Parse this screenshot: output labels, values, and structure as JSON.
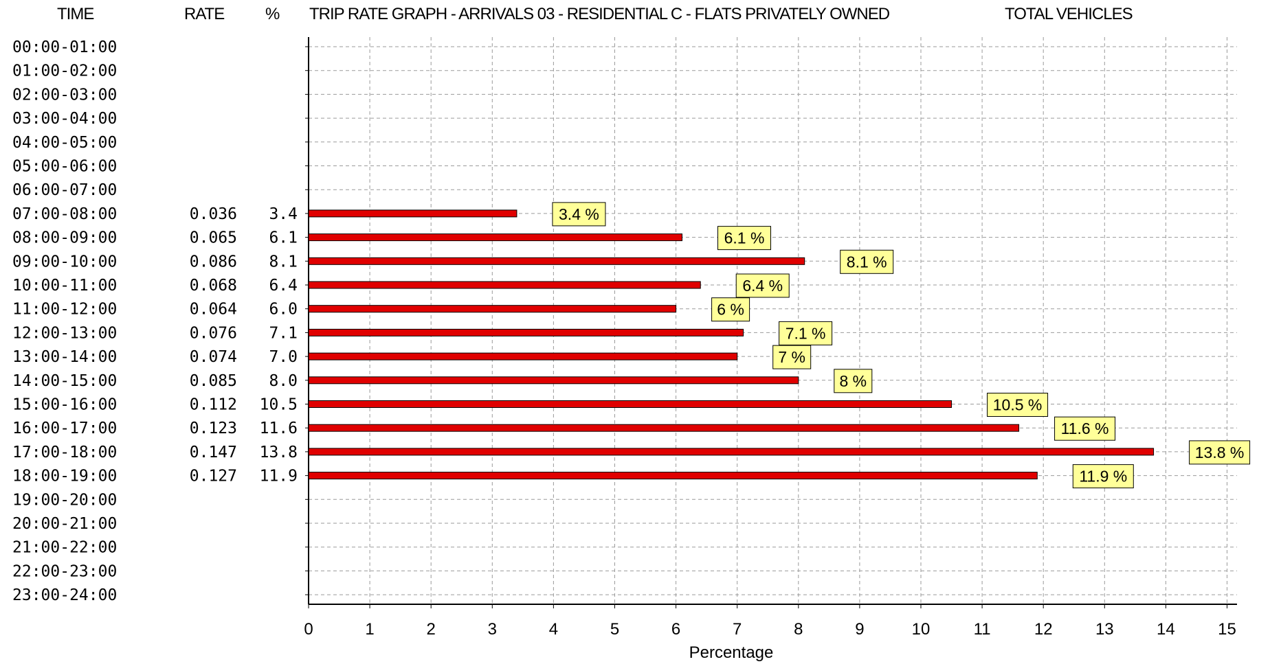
{
  "header": {
    "time_label": "TIME",
    "rate_label": "RATE",
    "pct_label": "%",
    "title": "TRIP RATE GRAPH - ARRIVALS  03 - RESIDENTIAL  C - FLATS PRIVATELY OWNED",
    "subtitle": "TOTAL VEHICLES"
  },
  "colors": {
    "bar": "#e00000",
    "bar_border": "#000000",
    "label_bg": "#ffff99",
    "grid": "#9a9a9a"
  },
  "chart_data": {
    "type": "bar",
    "orientation": "horizontal",
    "title": "TRIP RATE GRAPH - ARRIVALS  03 - RESIDENTIAL  C - FLATS PRIVATELY OWNED",
    "subtitle": "TOTAL VEHICLES",
    "xlabel": "Percentage",
    "ylabel": "TIME",
    "xlim": [
      0,
      15
    ],
    "xticks": [
      0,
      1,
      2,
      3,
      4,
      5,
      6,
      7,
      8,
      9,
      10,
      11,
      12,
      13,
      14,
      15
    ],
    "grid": true,
    "categories": [
      "00:00-01:00",
      "01:00-02:00",
      "02:00-03:00",
      "03:00-04:00",
      "04:00-05:00",
      "05:00-06:00",
      "06:00-07:00",
      "07:00-08:00",
      "08:00-09:00",
      "09:00-10:00",
      "10:00-11:00",
      "11:00-12:00",
      "12:00-13:00",
      "13:00-14:00",
      "14:00-15:00",
      "15:00-16:00",
      "16:00-17:00",
      "17:00-18:00",
      "18:00-19:00",
      "19:00-20:00",
      "20:00-21:00",
      "21:00-22:00",
      "22:00-23:00",
      "23:00-24:00"
    ],
    "rates": [
      "",
      "",
      "",
      "",
      "",
      "",
      "",
      "0.036",
      "0.065",
      "0.086",
      "0.068",
      "0.064",
      "0.076",
      "0.074",
      "0.085",
      "0.112",
      "0.123",
      "0.147",
      "0.127",
      "",
      "",
      "",
      "",
      ""
    ],
    "percent_text": [
      "",
      "",
      "",
      "",
      "",
      "",
      "",
      "3.4",
      "6.1",
      "8.1",
      "6.4",
      "6.0",
      "7.1",
      "7.0",
      "8.0",
      "10.5",
      "11.6",
      "13.8",
      "11.9",
      "",
      "",
      "",
      "",
      ""
    ],
    "values": [
      null,
      null,
      null,
      null,
      null,
      null,
      null,
      3.4,
      6.1,
      8.1,
      6.4,
      6.0,
      7.1,
      7.0,
      8.0,
      10.5,
      11.6,
      13.8,
      11.9,
      null,
      null,
      null,
      null,
      null
    ],
    "data_labels": [
      "",
      "",
      "",
      "",
      "",
      "",
      "",
      "3.4 %",
      "6.1 %",
      "8.1 %",
      "6.4 %",
      "6 %",
      "7.1 %",
      "7 %",
      "8 %",
      "10.5 %",
      "11.6 %",
      "13.8 %",
      "11.9 %",
      "",
      "",
      "",
      "",
      ""
    ]
  }
}
